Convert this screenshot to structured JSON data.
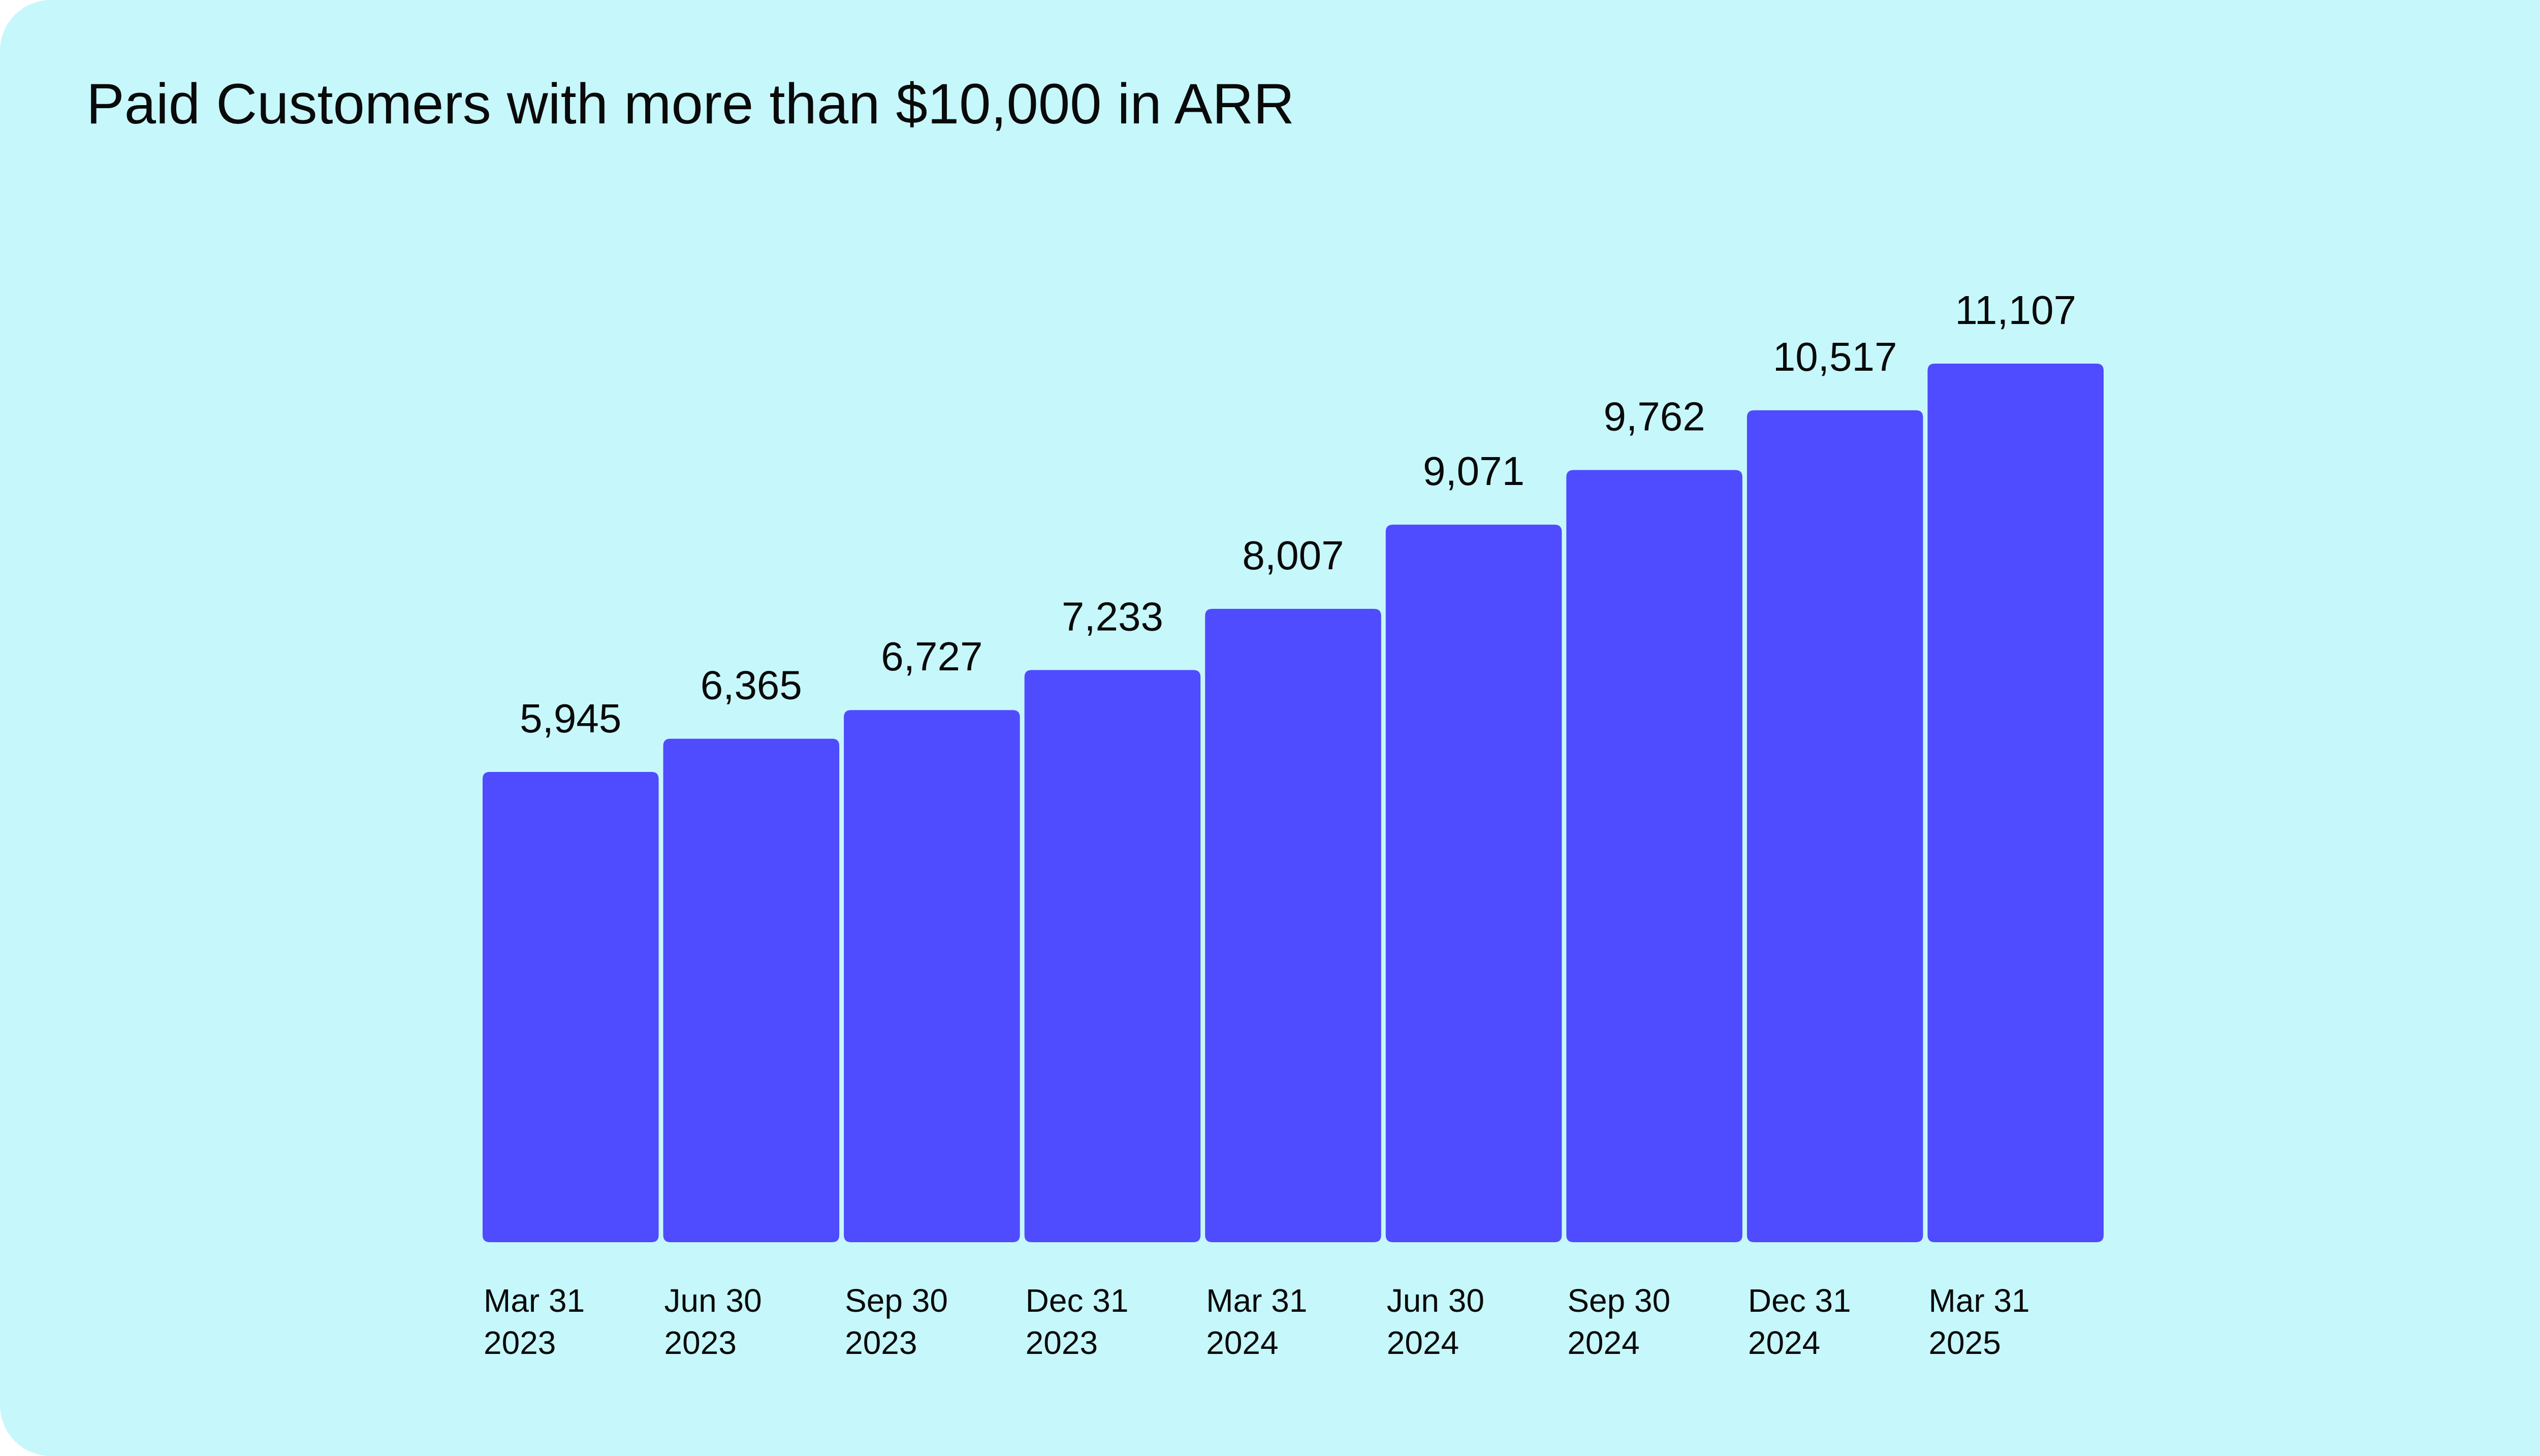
{
  "chart_data": {
    "type": "bar",
    "title": "Paid Customers with more than $10,000 in ARR",
    "xlabel": "",
    "ylabel": "",
    "categories": [
      [
        "Mar 31",
        "2023"
      ],
      [
        "Jun 30",
        "2023"
      ],
      [
        "Sep 30",
        "2023"
      ],
      [
        "Dec 31",
        "2023"
      ],
      [
        "Mar 31",
        "2024"
      ],
      [
        "Jun 30",
        "2024"
      ],
      [
        "Sep 30",
        "2024"
      ],
      [
        "Dec 31",
        "2024"
      ],
      [
        "Mar 31",
        "2025"
      ]
    ],
    "values": [
      5945,
      6365,
      6727,
      7233,
      8007,
      9071,
      9762,
      10517,
      11107
    ],
    "value_labels": [
      "5,945",
      "6,365",
      "6,727",
      "7,233",
      "8,007",
      "9,071",
      "9,762",
      "10,517",
      "11,107"
    ],
    "ylim": [
      0,
      11107
    ],
    "grid": false,
    "colors": {
      "bar": "#4f4bff",
      "background": "#c6f7fb",
      "text": "#0a0a0a"
    }
  }
}
